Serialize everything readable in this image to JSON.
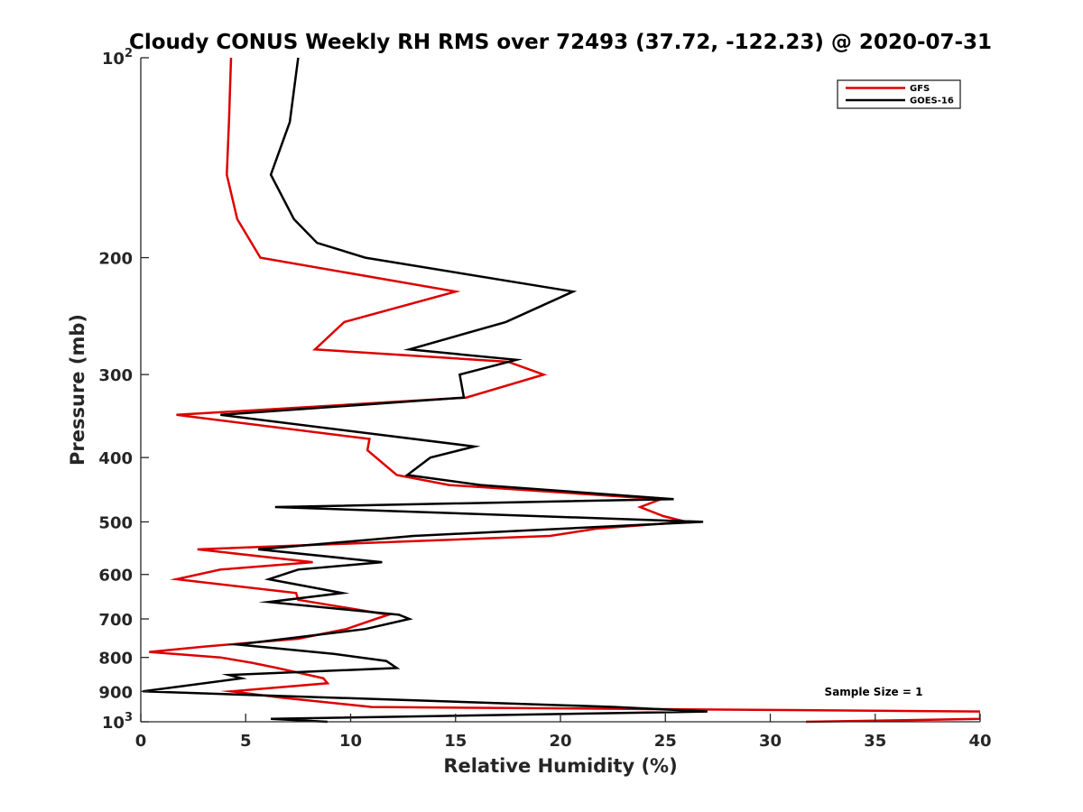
{
  "chart_data": {
    "type": "line",
    "title": "Cloudy CONUS Weekly RH RMS over 72493 (37.72, -122.23) @ 2020-07-31",
    "xlabel": "Relative Humidity (%)",
    "ylabel": "Pressure (mb)",
    "xlim": [
      0,
      40
    ],
    "ylim": [
      100,
      1000
    ],
    "yscale": "log",
    "y_reversed": true,
    "x_ticks": [
      "0",
      "5",
      "10",
      "15",
      "20",
      "25",
      "30",
      "35",
      "40"
    ],
    "x_tick_values": [
      0,
      5,
      10,
      15,
      20,
      25,
      30,
      35,
      40
    ],
    "y_ticks": [
      {
        "value": 100,
        "base": "10",
        "exp": "2"
      },
      {
        "value": 200,
        "label": "200"
      },
      {
        "value": 300,
        "label": "300"
      },
      {
        "value": 400,
        "label": "400"
      },
      {
        "value": 500,
        "label": "500"
      },
      {
        "value": 600,
        "label": "600"
      },
      {
        "value": 700,
        "label": "700"
      },
      {
        "value": 800,
        "label": "800"
      },
      {
        "value": 900,
        "label": "900"
      },
      {
        "value": 1000,
        "base": "10",
        "exp": "3"
      }
    ],
    "grid": false,
    "legend_position": "top-right",
    "annotation": "Sample Size = 1",
    "series": [
      {
        "name": "GFS",
        "color": "#dd0000",
        "points": [
          [
            4.3,
            100
          ],
          [
            4.2,
            125
          ],
          [
            4.1,
            150
          ],
          [
            4.6,
            175
          ],
          [
            5.7,
            200
          ],
          [
            15.0,
            225
          ],
          [
            9.7,
            250
          ],
          [
            8.3,
            275
          ],
          [
            17.5,
            287
          ],
          [
            19.2,
            300
          ],
          [
            15.5,
            325
          ],
          [
            1.7,
            345
          ],
          [
            10.9,
            375
          ],
          [
            10.8,
            390
          ],
          [
            12.2,
            425
          ],
          [
            14.7,
            440
          ],
          [
            24.8,
            462
          ],
          [
            23.8,
            475
          ],
          [
            24.9,
            490
          ],
          [
            26.0,
            500
          ],
          [
            21.7,
            512
          ],
          [
            19.5,
            525
          ],
          [
            2.7,
            550
          ],
          [
            8.2,
            575
          ],
          [
            3.8,
            590
          ],
          [
            1.7,
            610
          ],
          [
            7.4,
            640
          ],
          [
            7.5,
            655
          ],
          [
            11.8,
            690
          ],
          [
            11.2,
            700
          ],
          [
            9.8,
            725
          ],
          [
            7.5,
            750
          ],
          [
            3.1,
            770
          ],
          [
            0.4,
            785
          ],
          [
            3.8,
            800
          ],
          [
            5.3,
            815
          ],
          [
            6.5,
            830
          ],
          [
            8.7,
            860
          ],
          [
            8.9,
            875
          ],
          [
            4.3,
            900
          ],
          [
            6.7,
            920
          ],
          [
            11.0,
            950
          ],
          [
            40.0,
            965
          ],
          [
            40.0,
            990
          ],
          [
            31.7,
            1000
          ]
        ]
      },
      {
        "name": "GOES-16",
        "color": "#000000",
        "points": [
          [
            7.5,
            100
          ],
          [
            7.1,
            125
          ],
          [
            6.2,
            150
          ],
          [
            7.3,
            175
          ],
          [
            8.4,
            190
          ],
          [
            10.7,
            200
          ],
          [
            20.6,
            225
          ],
          [
            17.4,
            250
          ],
          [
            12.8,
            275
          ],
          [
            17.9,
            285
          ],
          [
            15.2,
            300
          ],
          [
            15.4,
            325
          ],
          [
            3.8,
            345
          ],
          [
            15.9,
            385
          ],
          [
            13.8,
            400
          ],
          [
            12.7,
            425
          ],
          [
            16.2,
            440
          ],
          [
            25.4,
            462
          ],
          [
            6.4,
            475
          ],
          [
            26.8,
            500
          ],
          [
            13.0,
            525
          ],
          [
            5.6,
            550
          ],
          [
            11.5,
            575
          ],
          [
            7.5,
            590
          ],
          [
            6.1,
            610
          ],
          [
            9.6,
            640
          ],
          [
            6.1,
            660
          ],
          [
            12.3,
            690
          ],
          [
            12.8,
            700
          ],
          [
            10.7,
            725
          ],
          [
            4.6,
            765
          ],
          [
            9.2,
            790
          ],
          [
            11.7,
            810
          ],
          [
            12.2,
            830
          ],
          [
            4.2,
            850
          ],
          [
            4.8,
            860
          ],
          [
            0.1,
            900
          ],
          [
            22.6,
            950
          ],
          [
            27.0,
            965
          ],
          [
            6.2,
            990
          ],
          [
            8.9,
            1000
          ]
        ]
      }
    ]
  }
}
